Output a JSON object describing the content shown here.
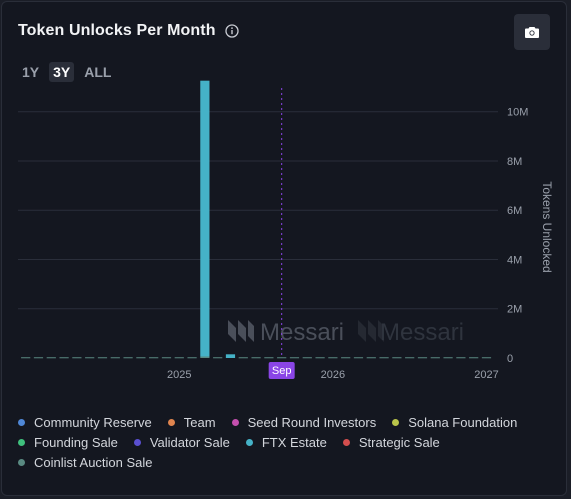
{
  "header": {
    "title": "Token Unlocks Per Month"
  },
  "icons": {
    "info": "info-icon",
    "camera": "camera-icon"
  },
  "range_tabs": [
    {
      "label": "1Y",
      "active": false
    },
    {
      "label": "3Y",
      "active": true
    },
    {
      "label": "ALL",
      "active": false
    }
  ],
  "watermark": "Messari",
  "colors": {
    "background": "#141720",
    "grid": "#2a2e3a",
    "axis_text": "#9aa0ab",
    "today_marker": "#8a45e6"
  },
  "chart_data": {
    "type": "bar",
    "stacked": true,
    "ylabel": "Tokens Unlocked",
    "ylim": [
      0,
      10800000
    ],
    "y_ticks": [
      {
        "value": 0,
        "label": "0"
      },
      {
        "value": 2000000,
        "label": "2M"
      },
      {
        "value": 4000000,
        "label": "4M"
      },
      {
        "value": 6000000,
        "label": "6M"
      },
      {
        "value": 8000000,
        "label": "8M"
      },
      {
        "value": 10000000,
        "label": "10M"
      }
    ],
    "x_ticks": [
      {
        "month": 12,
        "label": "2025"
      },
      {
        "month": 24,
        "label": "2026"
      },
      {
        "month": 36,
        "label": "2027"
      }
    ],
    "x_range_months": [
      -0.6,
      36.9
    ],
    "today_marker": {
      "month": 20,
      "label": "Sep"
    },
    "grid": true,
    "legend_position": "bottom",
    "months": 37,
    "series": [
      {
        "name": "Community Reserve",
        "color": "#4f87d6",
        "values": {}
      },
      {
        "name": "Team",
        "color": "#e0854f",
        "values": {}
      },
      {
        "name": "Seed Round Investors",
        "color": "#c44fae",
        "values": {}
      },
      {
        "name": "Solana Foundation",
        "color": "#b9c44a",
        "values": {}
      },
      {
        "name": "Founding Sale",
        "color": "#3fc07d",
        "values": {}
      },
      {
        "name": "Validator Sale",
        "color": "#5a4fd0",
        "values": {}
      },
      {
        "name": "FTX Estate",
        "color": "#45b2c7",
        "values": {
          "14": 11200000,
          "16": 150000
        }
      },
      {
        "name": "Strategic Sale",
        "color": "#d44e4e",
        "values": {}
      },
      {
        "name": "Coinlist Auction Sale",
        "color": "#5a8a82",
        "values": {
          "14": 60000
        }
      }
    ],
    "baseline_value": 30000
  }
}
